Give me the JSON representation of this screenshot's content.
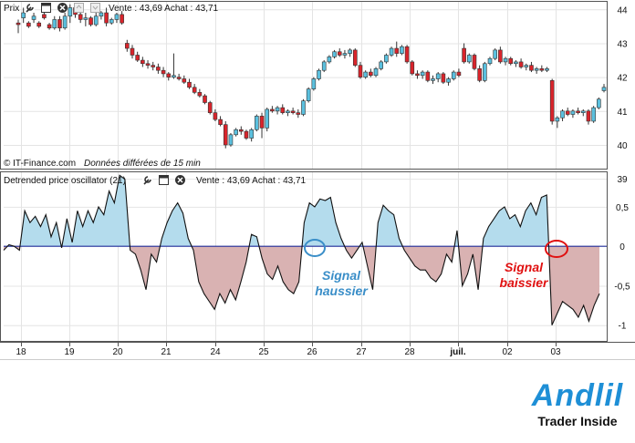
{
  "top_panel": {
    "label": "Prix",
    "quote": "Vente : 43,69 Achat : 43,71",
    "credit": "© IT-Finance.com",
    "credit_note": "Données différées de 15 min",
    "y_ticks": [
      "44",
      "43",
      "42",
      "41",
      "40",
      "39"
    ]
  },
  "bottom_panel": {
    "label": "Detrended price oscillator (21)",
    "quote": "Vente : 43,69 Achat : 43,71",
    "y_ticks": [
      "0,5",
      "0",
      "-0,5",
      "-1"
    ]
  },
  "x_axis": {
    "ticks": [
      "18",
      "19",
      "20",
      "21",
      "24",
      "25",
      "26",
      "27",
      "28",
      "juil.",
      "02",
      "03"
    ]
  },
  "annotations": {
    "buy": [
      "Signal",
      "haussier"
    ],
    "sell": [
      "Signal",
      "baissier"
    ]
  },
  "logo": {
    "name": "Andlil",
    "tagline": "Trader Inside"
  },
  "colors": {
    "up": "#5bc0de",
    "down": "#d9242b",
    "osc_positive": "#b4dced",
    "osc_negative": "#d9b2b2",
    "zero_line": "#1f2b99",
    "buy_annotation": "#3a8ec8",
    "sell_annotation": "#e01010"
  },
  "chart_data": [
    {
      "type": "candlestick",
      "ylim": [
        39.3,
        44.25
      ],
      "ticks": [
        "18",
        "19",
        "20",
        "21",
        "24",
        "25",
        "26",
        "27",
        "28",
        "juil.",
        "02",
        "03"
      ],
      "candles": [
        [
          43.6,
          43.7,
          43.3,
          43.55
        ],
        [
          43.75,
          44.05,
          43.6,
          43.9
        ],
        [
          43.6,
          43.65,
          43.45,
          43.5
        ],
        [
          43.7,
          43.9,
          43.6,
          43.8
        ],
        [
          43.6,
          43.65,
          43.45,
          43.5
        ],
        [
          43.85,
          43.9,
          43.7,
          43.75
        ],
        [
          43.55,
          43.6,
          43.4,
          43.45
        ],
        [
          43.45,
          43.8,
          43.4,
          43.7
        ],
        [
          43.7,
          43.8,
          43.35,
          43.45
        ],
        [
          43.45,
          43.9,
          43.4,
          43.8
        ],
        [
          43.8,
          44.15,
          43.6,
          44.05
        ],
        [
          44.05,
          44.1,
          43.75,
          43.85
        ],
        [
          43.85,
          43.95,
          43.6,
          43.7
        ],
        [
          43.7,
          43.9,
          43.5,
          43.75
        ],
        [
          43.75,
          43.8,
          43.5,
          43.55
        ],
        [
          43.55,
          43.9,
          43.5,
          43.8
        ],
        [
          43.8,
          43.95,
          43.7,
          43.9
        ],
        [
          43.9,
          44.05,
          43.5,
          43.6
        ],
        [
          43.6,
          43.75,
          43.55,
          43.7
        ],
        [
          43.7,
          43.9,
          43.6,
          43.85
        ],
        [
          43.85,
          43.95,
          43.55,
          43.6
        ],
        [
          43.0,
          43.1,
          42.75,
          42.85
        ],
        [
          42.85,
          42.95,
          42.55,
          42.65
        ],
        [
          42.65,
          42.75,
          42.45,
          42.5
        ],
        [
          42.5,
          42.6,
          42.3,
          42.4
        ],
        [
          42.4,
          42.5,
          42.25,
          42.35
        ],
        [
          42.35,
          42.45,
          42.2,
          42.3
        ],
        [
          42.3,
          42.4,
          42.1,
          42.2
        ],
        [
          42.2,
          42.3,
          42.0,
          42.1
        ],
        [
          42.1,
          42.15,
          41.9,
          42.0
        ],
        [
          42.0,
          42.7,
          41.95,
          42.05
        ],
        [
          42.0,
          42.1,
          41.9,
          41.95
        ],
        [
          41.95,
          42.05,
          41.8,
          41.85
        ],
        [
          41.85,
          41.95,
          41.65,
          41.7
        ],
        [
          41.7,
          41.8,
          41.5,
          41.55
        ],
        [
          41.55,
          41.65,
          41.4,
          41.45
        ],
        [
          41.45,
          41.5,
          41.2,
          41.25
        ],
        [
          41.25,
          41.3,
          40.9,
          40.95
        ],
        [
          40.95,
          41.05,
          40.7,
          40.75
        ],
        [
          40.75,
          40.85,
          40.55,
          40.6
        ],
        [
          40.6,
          40.7,
          39.9,
          40.0
        ],
        [
          40.0,
          40.35,
          39.95,
          40.3
        ],
        [
          40.3,
          40.5,
          40.25,
          40.45
        ],
        [
          40.45,
          40.55,
          40.3,
          40.4
        ],
        [
          40.4,
          40.45,
          40.15,
          40.2
        ],
        [
          40.2,
          40.5,
          40.1,
          40.45
        ],
        [
          40.45,
          40.9,
          40.4,
          40.85
        ],
        [
          40.85,
          40.95,
          40.2,
          40.5
        ],
        [
          40.5,
          41.1,
          40.4,
          41.05
        ],
        [
          41.05,
          41.15,
          40.95,
          41.0
        ],
        [
          41.0,
          41.15,
          40.9,
          41.1
        ],
        [
          41.1,
          41.2,
          40.9,
          40.95
        ],
        [
          40.95,
          41.05,
          40.85,
          41.0
        ],
        [
          41.0,
          41.1,
          40.9,
          40.95
        ],
        [
          40.95,
          41.05,
          40.8,
          40.9
        ],
        [
          40.9,
          41.35,
          40.85,
          41.3
        ],
        [
          41.3,
          41.7,
          41.25,
          41.65
        ],
        [
          41.65,
          42.0,
          41.6,
          41.95
        ],
        [
          41.95,
          42.25,
          41.9,
          42.2
        ],
        [
          42.2,
          42.5,
          42.15,
          42.45
        ],
        [
          42.45,
          42.65,
          42.4,
          42.6
        ],
        [
          42.6,
          42.8,
          42.55,
          42.75
        ],
        [
          42.75,
          42.85,
          42.6,
          42.65
        ],
        [
          42.65,
          42.8,
          42.55,
          42.7
        ],
        [
          42.7,
          42.85,
          42.6,
          42.8
        ],
        [
          42.8,
          42.85,
          42.3,
          42.35
        ],
        [
          42.35,
          42.45,
          41.95,
          42.0
        ],
        [
          42.0,
          42.2,
          41.95,
          42.15
        ],
        [
          42.15,
          42.25,
          42.0,
          42.05
        ],
        [
          42.05,
          42.3,
          42.0,
          42.25
        ],
        [
          42.25,
          42.5,
          42.2,
          42.45
        ],
        [
          42.45,
          42.7,
          42.4,
          42.65
        ],
        [
          42.65,
          42.9,
          42.6,
          42.85
        ],
        [
          42.85,
          43.05,
          42.6,
          42.7
        ],
        [
          42.7,
          42.95,
          42.65,
          42.9
        ],
        [
          42.9,
          42.95,
          42.4,
          42.45
        ],
        [
          42.45,
          42.5,
          42.05,
          42.1
        ],
        [
          42.1,
          42.2,
          41.95,
          42.05
        ],
        [
          42.05,
          42.2,
          41.95,
          42.15
        ],
        [
          42.15,
          42.2,
          41.85,
          41.9
        ],
        [
          41.9,
          42.05,
          41.8,
          41.95
        ],
        [
          41.95,
          42.15,
          41.85,
          42.1
        ],
        [
          42.1,
          42.15,
          41.8,
          41.85
        ],
        [
          41.85,
          42.0,
          41.75,
          41.95
        ],
        [
          41.95,
          42.2,
          41.9,
          42.15
        ],
        [
          42.15,
          42.25,
          42.0,
          42.05
        ],
        [
          42.85,
          43.0,
          42.4,
          42.45
        ],
        [
          42.45,
          42.7,
          42.4,
          42.65
        ],
        [
          42.65,
          42.7,
          42.2,
          42.25
        ],
        [
          42.25,
          42.35,
          41.85,
          41.9
        ],
        [
          41.9,
          42.45,
          41.85,
          42.4
        ],
        [
          42.4,
          42.6,
          42.35,
          42.55
        ],
        [
          42.55,
          42.85,
          42.5,
          42.8
        ],
        [
          42.8,
          42.9,
          42.4,
          42.45
        ],
        [
          42.45,
          42.6,
          42.35,
          42.55
        ],
        [
          42.55,
          42.6,
          42.35,
          42.4
        ],
        [
          42.4,
          42.5,
          42.3,
          42.45
        ],
        [
          42.45,
          42.55,
          42.25,
          42.3
        ],
        [
          42.3,
          42.4,
          42.2,
          42.35
        ],
        [
          42.35,
          42.45,
          42.15,
          42.2
        ],
        [
          42.2,
          42.3,
          42.1,
          42.25
        ],
        [
          42.25,
          42.35,
          42.15,
          42.2
        ],
        [
          42.2,
          42.3,
          42.15,
          42.25
        ],
        [
          41.9,
          41.95,
          40.6,
          40.7
        ],
        [
          40.7,
          40.85,
          40.5,
          40.8
        ],
        [
          40.8,
          41.05,
          40.7,
          41.0
        ],
        [
          41.0,
          41.1,
          40.85,
          40.9
        ],
        [
          40.9,
          41.05,
          40.8,
          41.0
        ],
        [
          41.0,
          41.1,
          40.9,
          40.95
        ],
        [
          40.95,
          41.05,
          40.85,
          41.0
        ],
        [
          41.0,
          41.05,
          40.6,
          40.7
        ],
        [
          40.7,
          41.15,
          40.65,
          41.1
        ],
        [
          41.1,
          41.4,
          41.05,
          41.35
        ],
        [
          41.6,
          41.8,
          41.55,
          41.7
        ]
      ]
    },
    {
      "type": "area",
      "ylim": [
        -1.2,
        0.95
      ],
      "baseline": 0,
      "values": [
        -0.05,
        0.02,
        0.0,
        -0.05,
        0.45,
        0.3,
        0.38,
        0.25,
        0.4,
        0.12,
        0.3,
        -0.02,
        0.35,
        0.05,
        0.45,
        0.25,
        0.45,
        0.3,
        0.5,
        0.4,
        0.7,
        0.55,
        0.9,
        0.85,
        -0.05,
        -0.1,
        -0.3,
        -0.55,
        -0.1,
        -0.2,
        0.1,
        0.3,
        0.45,
        0.55,
        0.42,
        0.1,
        -0.05,
        -0.45,
        -0.6,
        -0.7,
        -0.8,
        -0.6,
        -0.72,
        -0.55,
        -0.68,
        -0.45,
        -0.2,
        0.15,
        0.12,
        -0.15,
        -0.35,
        -0.42,
        -0.25,
        -0.45,
        -0.55,
        -0.6,
        -0.45,
        0.3,
        0.55,
        0.5,
        0.6,
        0.58,
        0.62,
        0.3,
        0.1,
        -0.05,
        -0.15,
        -0.05,
        0.05,
        -0.25,
        -0.55,
        0.3,
        0.52,
        0.45,
        0.4,
        0.1,
        -0.05,
        -0.15,
        -0.25,
        -0.3,
        -0.3,
        -0.4,
        -0.45,
        -0.35,
        -0.1,
        -0.2,
        0.2,
        -0.5,
        -0.35,
        -0.1,
        -0.55,
        0.1,
        0.25,
        0.35,
        0.45,
        0.5,
        0.35,
        0.4,
        0.25,
        0.45,
        0.55,
        0.4,
        0.62,
        0.65,
        -1.0,
        -0.85,
        -0.7,
        -0.75,
        -0.8,
        -0.9,
        -0.75,
        -0.95,
        -0.75,
        -0.6
      ]
    }
  ]
}
